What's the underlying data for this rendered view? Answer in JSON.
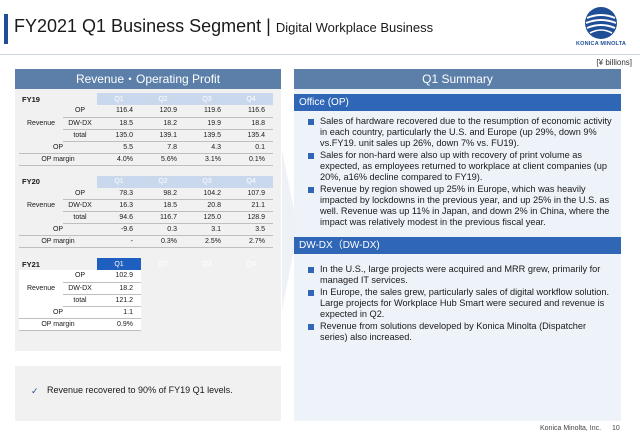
{
  "header": {
    "title": "FY2021 Q1 Business Segment",
    "separator": "|",
    "subtitle": "Digital Workplace Business",
    "logo_text": "KONICA MINOLTA"
  },
  "unit_label": "[¥ billions]",
  "left": {
    "title": "Revenue・Operating Profit",
    "quarters": [
      "Q1",
      "Q2",
      "Q3",
      "Q4"
    ],
    "row_labels": {
      "revenue": "Revenue",
      "op": "OP",
      "dwdx": "DW-DX",
      "total": "total",
      "op_margin": "OP margin"
    },
    "fy19": {
      "label": "FY19",
      "rev_op": [
        "116.4",
        "120.9",
        "119.6",
        "116.6"
      ],
      "rev_dwdx": [
        "18.5",
        "18.2",
        "19.9",
        "18.8"
      ],
      "rev_total": [
        "135.0",
        "139.1",
        "139.5",
        "135.4"
      ],
      "op": [
        "5.5",
        "7.8",
        "4.3",
        "0.1"
      ],
      "op_margin": [
        "4.0%",
        "5.6%",
        "3.1%",
        "0.1%"
      ]
    },
    "fy20": {
      "label": "FY20",
      "rev_op": [
        "78.3",
        "98.2",
        "104.2",
        "107.9"
      ],
      "rev_dwdx": [
        "16.3",
        "18.5",
        "20.8",
        "21.1"
      ],
      "rev_total": [
        "94.6",
        "116.7",
        "125.0",
        "128.9"
      ],
      "op": [
        "-9.6",
        "0.3",
        "3.1",
        "3.5"
      ],
      "op_margin": [
        "-",
        "0.3%",
        "2.5%",
        "2.7%"
      ]
    },
    "fy21": {
      "label": "FY21",
      "rev_op": [
        "102.9"
      ],
      "rev_dwdx": [
        "18.2"
      ],
      "rev_total": [
        "121.2"
      ],
      "op": [
        "1.1"
      ],
      "op_margin": [
        "0.9%"
      ]
    },
    "note": "Revenue recovered to 90% of FY19 Q1 levels."
  },
  "summary": {
    "title": "Q1 Summary",
    "office_head": "Office (OP)",
    "office_bullets": [
      "Sales of hardware recovered due to the resumption of economic activity in each country, particularly the U.S. and Europe (up 29%, down 9% vs.FY19. unit sales up 26%, down 7% vs. FU19).",
      "Sales for non-hard were also up with recovery of print volume as expected, as employees returned to workplace at client companies (up 20%, a16% decline compared to FY19).",
      "Revenue by region showed up 25% in Europe, which was heavily impacted by lockdowns in the previous year, and up 25% in the U.S. as well. Revenue was up 11% in Japan, and down 2% in China, where the impact was relatively modest in the previous fiscal year."
    ],
    "dwdx_head": "DW-DX（DW-DX)",
    "dwdx_bullets": [
      "In the U.S., large projects were acquired and MRR grew, primarily for managed IT services.",
      "In Europe, the sales grew, particularly sales of digital workflow solution. Large projects for Workplace Hub Smart were secured and revenue is expected in Q2.",
      "Revenue from solutions developed by Konica Minolta (Dispatcher series) also increased."
    ]
  },
  "footer": {
    "company": "Konica Minolta, Inc.",
    "page": "10"
  },
  "colors": {
    "accent_dark": "#1f4e96",
    "section_head": "#5b7fa9",
    "sub_head": "#2f67b6",
    "quarter_light": "#c9d8ec",
    "quarter_active": "#1f5fbf"
  }
}
